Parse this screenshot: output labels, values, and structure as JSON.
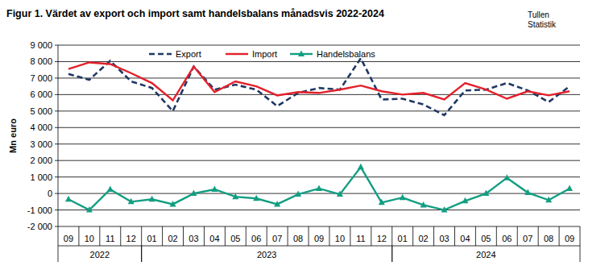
{
  "chart_data": {
    "type": "line",
    "title": "Figur 1. Värdet av export och import samt handelsbalans månadsvis 2022-2024",
    "annotations": [
      "Tullen",
      "Statistik"
    ],
    "y_label": "Mn euro",
    "categories": [
      "09",
      "10",
      "11",
      "12",
      "01",
      "02",
      "03",
      "04",
      "05",
      "06",
      "07",
      "08",
      "09",
      "10",
      "11",
      "12",
      "01",
      "02",
      "03",
      "04",
      "05",
      "06",
      "07",
      "08",
      "09"
    ],
    "x_groups": [
      {
        "label": "2022",
        "count": 4
      },
      {
        "label": "2023",
        "count": 12
      },
      {
        "label": "2024",
        "count": 9
      }
    ],
    "series": [
      {
        "name": "Export",
        "color": "#1f3864",
        "line_style": "dashed",
        "marker": "none",
        "values": [
          7250,
          6900,
          8050,
          6800,
          6400,
          5000,
          7700,
          6300,
          6600,
          6300,
          5300,
          6100,
          6400,
          6300,
          8200,
          5700,
          5750,
          5400,
          4750,
          6250,
          6300,
          6700,
          6250,
          5550,
          6500
        ]
      },
      {
        "name": "Import",
        "color": "#e3202b",
        "line_style": "solid",
        "marker": "none",
        "values": [
          7550,
          7950,
          7850,
          7300,
          6700,
          5650,
          7700,
          6150,
          6800,
          6500,
          5950,
          6150,
          6100,
          6300,
          6550,
          6200,
          6000,
          6100,
          5700,
          6700,
          6300,
          5750,
          6200,
          5950,
          6200
        ]
      },
      {
        "name": "Handelsbalans",
        "color": "#139e82",
        "line_style": "solid",
        "marker": "triangle",
        "values": [
          -350,
          -1000,
          250,
          -500,
          -350,
          -650,
          0,
          250,
          -200,
          -300,
          -650,
          -50,
          300,
          -50,
          1600,
          -550,
          -250,
          -700,
          -1000,
          -450,
          0,
          950,
          50,
          -400,
          300
        ]
      }
    ],
    "ylim": [
      -2000,
      9000
    ],
    "yticks": [
      {
        "value": -2000,
        "label": "-2 000"
      },
      {
        "value": -1000,
        "label": "-1 000"
      },
      0,
      {
        "value": 1000,
        "label": "1 000"
      },
      {
        "value": 2000,
        "label": "2 000"
      },
      {
        "value": 3000,
        "label": "3 000"
      },
      {
        "value": 4000,
        "label": "4 000"
      },
      {
        "value": 5000,
        "label": "5 000"
      },
      {
        "value": 6000,
        "label": "6 000"
      },
      {
        "value": 7000,
        "label": "7 000"
      },
      {
        "value": 8000,
        "label": "8 000"
      },
      {
        "value": 9000,
        "label": "9 000"
      }
    ],
    "grid": true,
    "legend": "top"
  }
}
